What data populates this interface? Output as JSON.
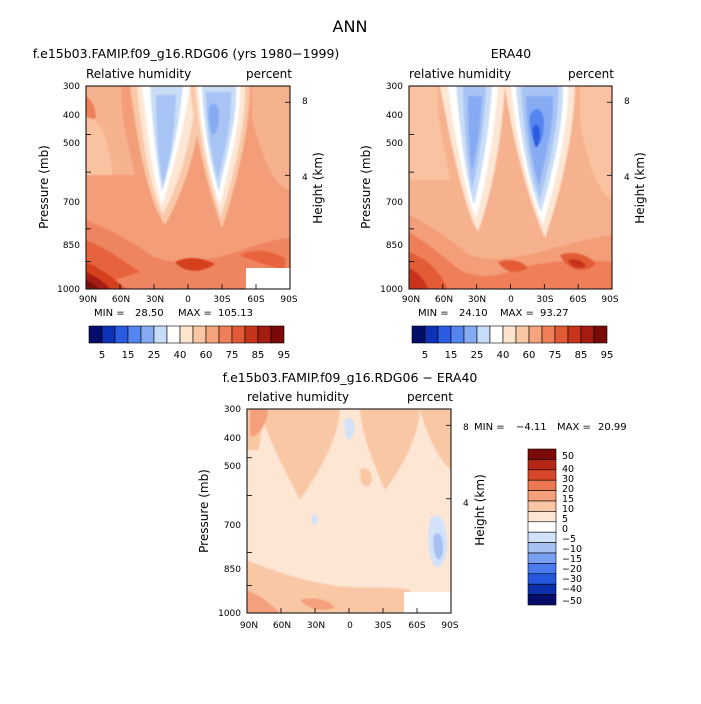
{
  "main_title": "ANN",
  "colors": {
    "palette_top": [
      "#050d6b",
      "#0d32b8",
      "#2a5be0",
      "#5585f0",
      "#86abf3",
      "#c7dcf8",
      "#ffffff",
      "#fde4cc",
      "#f9c7a4",
      "#f5a47e",
      "#ef7f58",
      "#e35b36",
      "#c8331c",
      "#a51d12",
      "#7a0a07"
    ],
    "palette_diff": [
      "#050d6b",
      "#0c2fab",
      "#2658df",
      "#4a7aee",
      "#7aa0f2",
      "#a6c0f4",
      "#d2e2f9",
      "#ffffff",
      "#fde6d4",
      "#f8c6a5",
      "#f4a07c",
      "#ec7750",
      "#d9472a",
      "#b42716",
      "#7a0a07"
    ]
  },
  "chart_data": [
    {
      "id": "model",
      "type": "contour",
      "title": "f.e15b03.FAMIP.f09_g16.RDG06 (yrs 1980−1999)",
      "left_label": "Relative humidity",
      "right_label": "percent",
      "ylabel": "Pressure (mb)",
      "y2label": "Height (km)",
      "x_ticks": [
        "90N",
        "60N",
        "30N",
        "0",
        "30S",
        "60S",
        "90S"
      ],
      "y_ticks": [
        "300",
        "400",
        "500",
        "700",
        "850",
        "1000"
      ],
      "y_values": [
        300,
        400,
        500,
        700,
        850,
        1000
      ],
      "ylim": [
        1000,
        300
      ],
      "y_scale": "log",
      "height_ticks": [
        "8",
        "4"
      ],
      "min_label": "MIN =",
      "min_value": "28.50",
      "max_label": "MAX =",
      "max_value": "105.13",
      "levels": [
        "5",
        "15",
        "25",
        "40",
        "60",
        "75",
        "85",
        "95"
      ]
    },
    {
      "id": "obs",
      "type": "contour",
      "title": "ERA40",
      "left_label": "relative humidity",
      "right_label": "percent",
      "ylabel": "Pressure (mb)",
      "y2label": "Height (km)",
      "x_ticks": [
        "90N",
        "60N",
        "30N",
        "0",
        "30S",
        "60S",
        "90S"
      ],
      "y_ticks": [
        "300",
        "400",
        "500",
        "700",
        "850",
        "1000"
      ],
      "y_values": [
        300,
        400,
        500,
        700,
        850,
        1000
      ],
      "ylim": [
        1000,
        300
      ],
      "y_scale": "log",
      "height_ticks": [
        "8",
        "4"
      ],
      "min_label": "MIN =",
      "min_value": "24.10",
      "max_label": "MAX =",
      "max_value": "93.27",
      "levels": [
        "5",
        "15",
        "25",
        "40",
        "60",
        "75",
        "85",
        "95"
      ]
    },
    {
      "id": "diff",
      "type": "contour",
      "title": "f.e15b03.FAMIP.f09_g16.RDG06 − ERA40",
      "left_label": "relative humidity",
      "right_label": "percent",
      "ylabel": "Pressure (mb)",
      "y2label": "Height (km)",
      "x_ticks": [
        "90N",
        "60N",
        "30N",
        "0",
        "30S",
        "60S",
        "90S"
      ],
      "y_ticks": [
        "300",
        "400",
        "500",
        "700",
        "850",
        "1000"
      ],
      "y_values": [
        300,
        400,
        500,
        700,
        850,
        1000
      ],
      "ylim": [
        1000,
        300
      ],
      "y_scale": "log",
      "height_ticks": [
        "8",
        "4"
      ],
      "min_label": "MIN =",
      "min_value": "−4.11",
      "max_label": "MAX =",
      "max_value": "20.99",
      "levels": [
        "50",
        "40",
        "30",
        "20",
        "15",
        "10",
        "5",
        "0",
        "−5",
        "−10",
        "−15",
        "−20",
        "−30",
        "−40",
        "−50"
      ]
    }
  ]
}
